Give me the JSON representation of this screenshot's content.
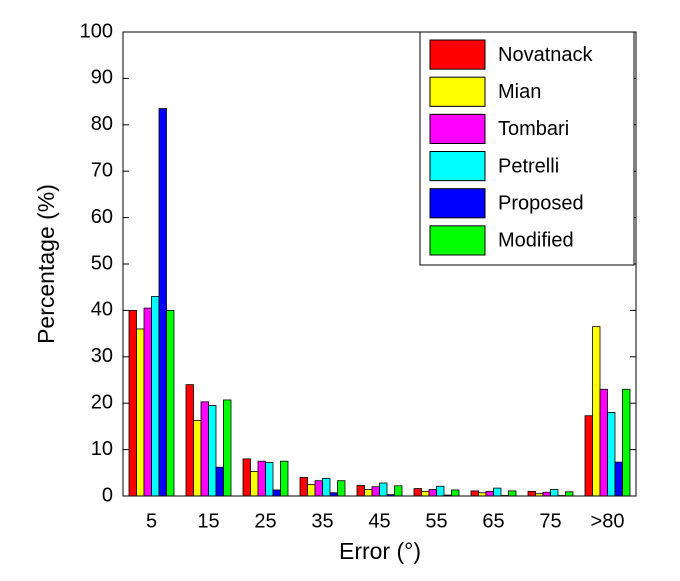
{
  "chart_data": {
    "type": "bar",
    "x_label": "Error (°)",
    "y_label": "Percentage (%)",
    "categories": [
      "5",
      "15",
      "25",
      "35",
      "45",
      "55",
      "65",
      "75",
      ">80"
    ],
    "series": [
      {
        "name": "Novatnack",
        "color": "#ff0000",
        "values": [
          40,
          24,
          8,
          4,
          2.3,
          1.6,
          1.1,
          1,
          17.3
        ]
      },
      {
        "name": "Mian",
        "color": "#ffff00",
        "values": [
          36,
          16.3,
          5.3,
          2.5,
          1.4,
          1,
          0.7,
          0.5,
          36.5
        ]
      },
      {
        "name": "Tombari",
        "color": "#ff00ff",
        "values": [
          40.5,
          20.3,
          7.5,
          3.3,
          2,
          1.4,
          1,
          0.8,
          23
        ]
      },
      {
        "name": "Petrelli",
        "color": "#00ffff",
        "values": [
          43,
          19.5,
          7.2,
          3.8,
          2.8,
          2.1,
          1.7,
          1.4,
          18
        ]
      },
      {
        "name": "Proposed",
        "color": "#0000ff",
        "values": [
          83.5,
          6.2,
          1.3,
          0.7,
          0.3,
          0.2,
          0.1,
          0.1,
          7.3
        ]
      },
      {
        "name": "Modified",
        "color": "#00ff00",
        "values": [
          40,
          20.7,
          7.5,
          3.3,
          2.2,
          1.3,
          1.1,
          0.9,
          23
        ]
      }
    ],
    "ylim": [
      0,
      100
    ],
    "yticks": [
      0,
      10,
      20,
      30,
      40,
      50,
      60,
      70,
      80,
      90,
      100
    ],
    "legend": "upper-right"
  }
}
